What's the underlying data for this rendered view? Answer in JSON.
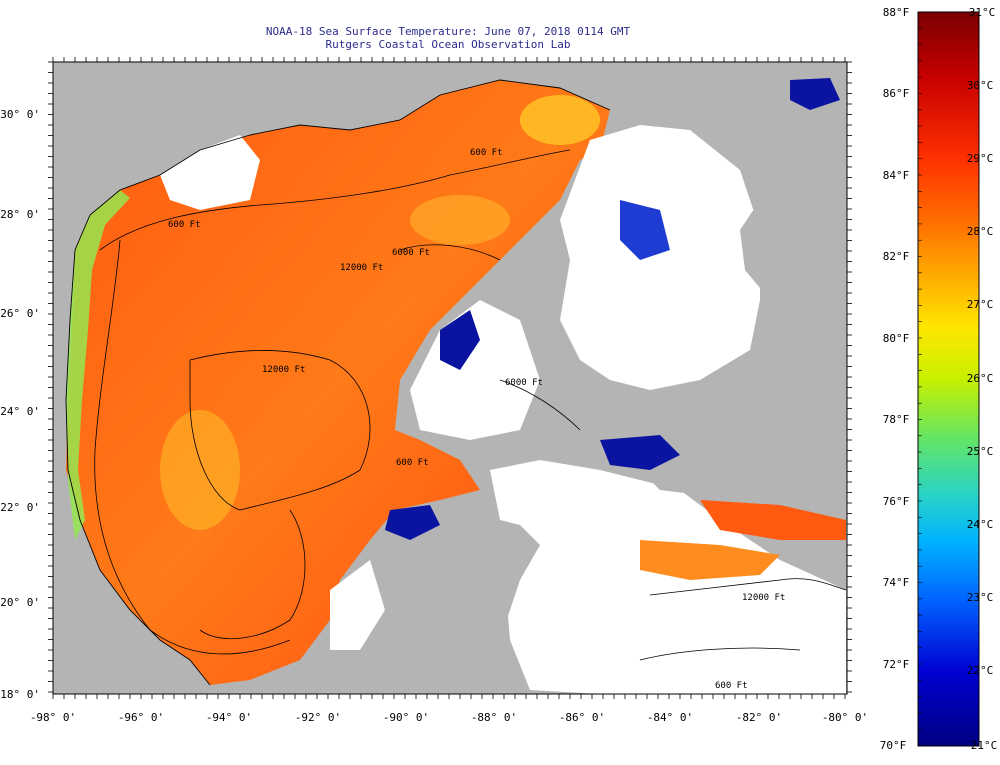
{
  "header": {
    "title_line1": "NOAA-18 Sea Surface Temperature:  June 07, 2018 0114 GMT",
    "title_line2": "Rutgers Coastal Ocean Observation Lab"
  },
  "map": {
    "lon_labels": [
      "-98° 0'",
      "-96° 0'",
      "-94° 0'",
      "-92° 0'",
      "-90° 0'",
      "-88° 0'",
      "-86° 0'",
      "-84° 0'",
      "-82° 0'",
      "-80° 0'"
    ],
    "lat_labels": [
      "30° 0'",
      "28° 0'",
      "26° 0'",
      "24° 0'",
      "22° 0'",
      "20° 0'",
      "18° 0'"
    ],
    "contour_labels": [
      "600 Ft",
      "12000 Ft",
      "12000 Ft",
      "6000 Ft",
      "600 Ft",
      "600 Ft",
      "6000 Ft",
      "12000 Ft",
      "600 Ft"
    ],
    "colors": {
      "land": "#b4b4b4",
      "cloud": "#ffffff",
      "coast": "#000000"
    }
  },
  "colorbar": {
    "f_labels": [
      "88°F",
      "86°F",
      "84°F",
      "82°F",
      "80°F",
      "78°F",
      "76°F",
      "74°F",
      "72°F",
      "70°F"
    ],
    "c_labels": [
      "31°C",
      "30°C",
      "29°C",
      "28°C",
      "27°C",
      "26°C",
      "25°C",
      "24°C",
      "23°C",
      "22°C",
      "21°C"
    ],
    "stops": [
      "#7a0000",
      "#c80000",
      "#ff3000",
      "#ff7a00",
      "#ffb400",
      "#ffe600",
      "#c8f000",
      "#64e664",
      "#28d2c8",
      "#00b4ff",
      "#0064ff",
      "#0000d2",
      "#000080"
    ]
  }
}
